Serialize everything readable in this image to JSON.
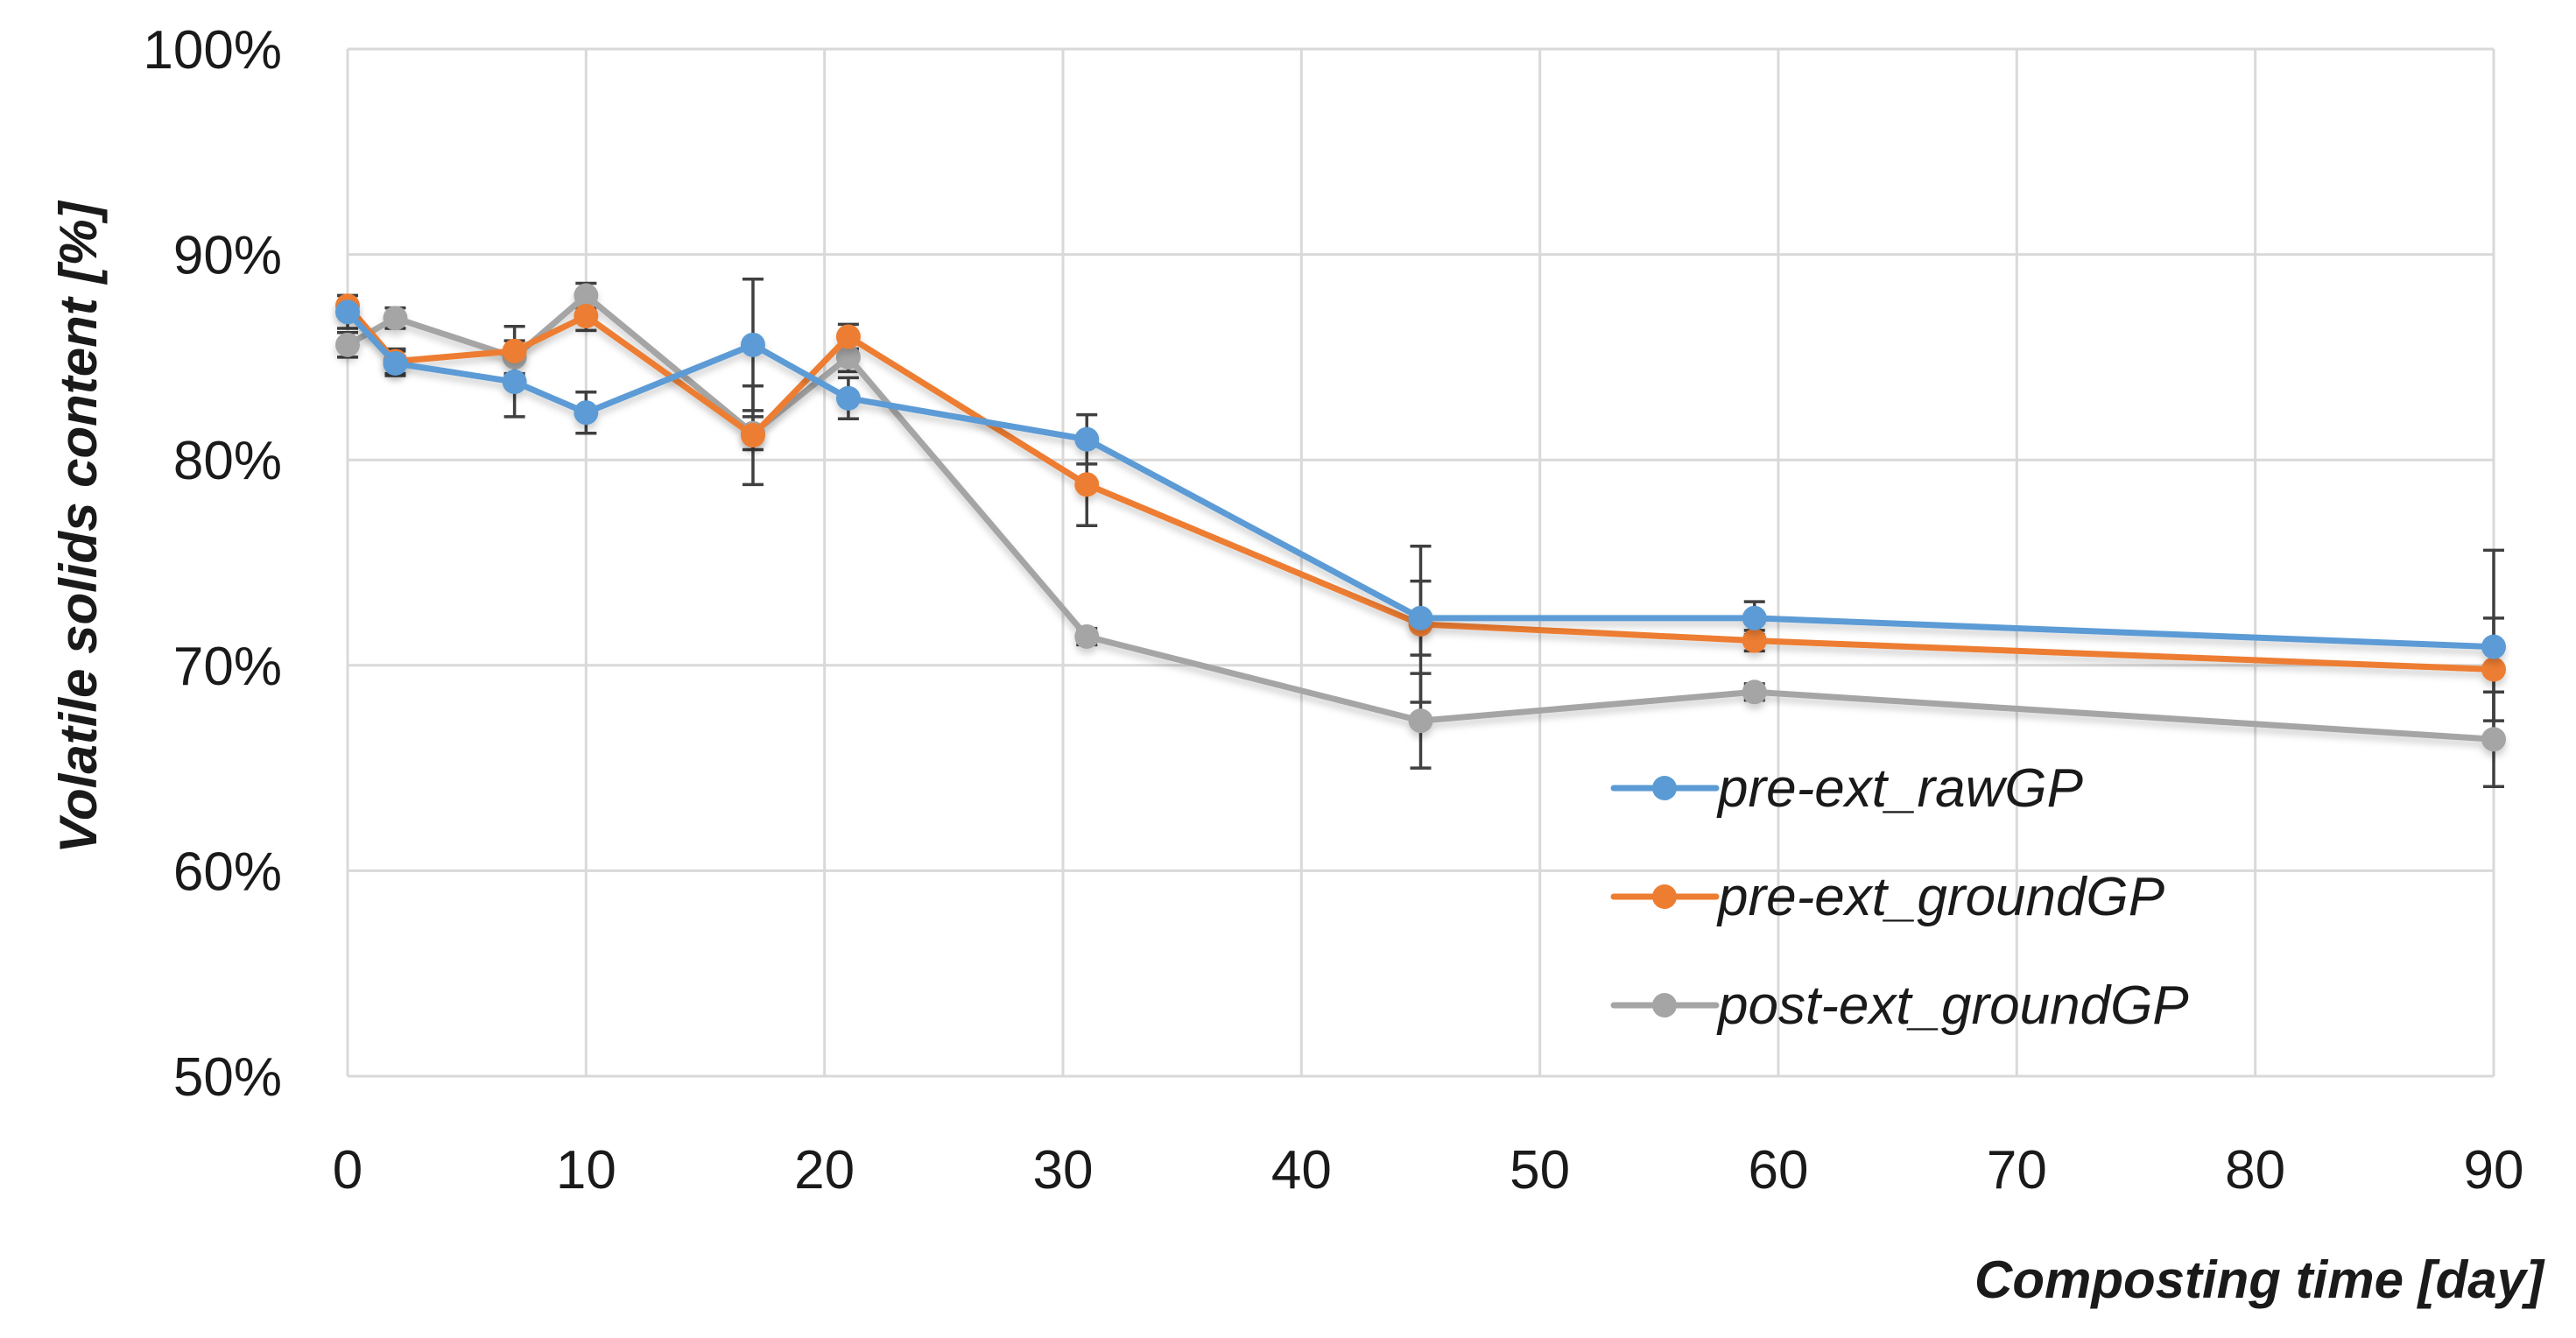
{
  "chart_data": {
    "type": "line",
    "title": "",
    "xlabel": "Composting time [day]",
    "ylabel": "Volatile solids content [%]",
    "xlim": [
      0,
      90
    ],
    "ylim": [
      50,
      100
    ],
    "x_ticks": [
      0,
      10,
      20,
      30,
      40,
      50,
      60,
      70,
      80,
      90
    ],
    "x_tick_labels": [
      "0",
      "10",
      "20",
      "30",
      "40",
      "50",
      "60",
      "70",
      "80",
      "90"
    ],
    "y_ticks": [
      50,
      60,
      70,
      80,
      90,
      100
    ],
    "y_tick_labels": [
      "50%",
      "60%",
      "70%",
      "80%",
      "90%",
      "100%"
    ],
    "grid": true,
    "legend_position": "lower-right",
    "series": [
      {
        "name": "pre-ext_rawGP",
        "color": "#5B9BD5",
        "x": [
          0,
          2,
          7,
          10,
          17,
          21,
          31,
          45,
          59,
          90
        ],
        "values": [
          87.2,
          84.7,
          83.8,
          82.3,
          85.6,
          83.0,
          81.0,
          72.3,
          72.3,
          70.9
        ],
        "errors": [
          0.8,
          0.6,
          1.7,
          1.0,
          3.2,
          1.0,
          1.2,
          1.8,
          0.8,
          4.7
        ]
      },
      {
        "name": "pre-ext_groundGP",
        "color": "#ED7D31",
        "x": [
          0,
          2,
          7,
          10,
          17,
          21,
          31,
          45,
          59,
          90
        ],
        "values": [
          87.5,
          84.8,
          85.3,
          87.0,
          81.2,
          86.0,
          78.8,
          72.0,
          71.2,
          69.8
        ],
        "errors": [
          0.5,
          0.6,
          1.2,
          0.7,
          2.4,
          0.6,
          2.0,
          3.8,
          0.5,
          2.5
        ]
      },
      {
        "name": "post-ext_groundGP",
        "color": "#A5A5A5",
        "x": [
          0,
          2,
          7,
          10,
          17,
          21,
          31,
          45,
          59,
          90
        ],
        "values": [
          85.6,
          86.9,
          85.0,
          88.0,
          81.3,
          85.0,
          71.4,
          67.3,
          68.7,
          66.4
        ],
        "errors": [
          0.6,
          0.5,
          0.8,
          0.6,
          0.8,
          0.7,
          0.4,
          2.3,
          0.4,
          2.3
        ]
      }
    ]
  }
}
